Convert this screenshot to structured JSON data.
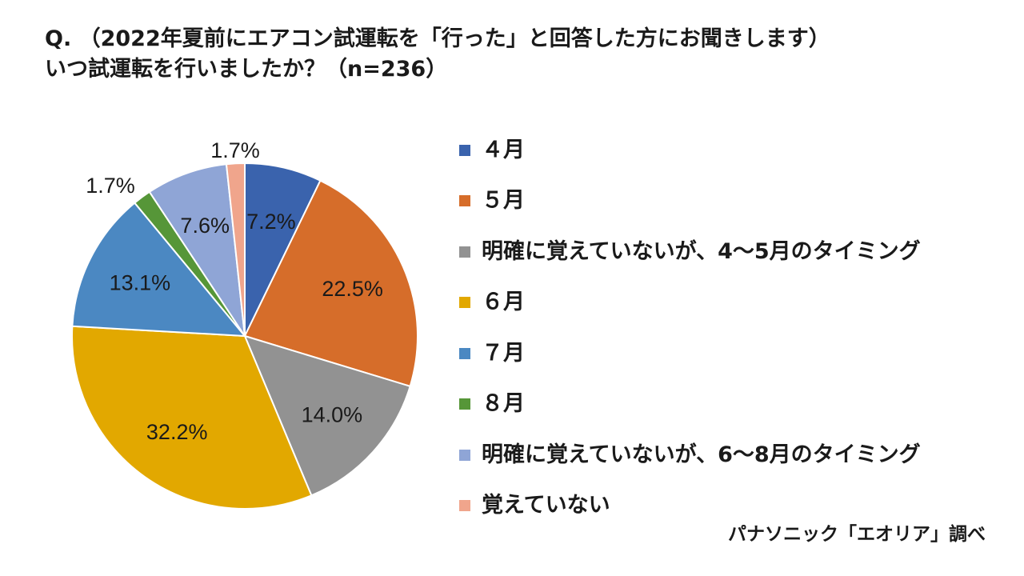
{
  "header": {
    "line1": "Q. （2022年夏前にエアコン試運転を「行った」と回答した方にお聞きします）",
    "line2": "いつ試運転を行いましたか？（n=236）"
  },
  "credit": "パナソニック「エオリア」調べ",
  "chart_data": {
    "type": "pie",
    "title": "",
    "start_angle": "12 o'clock",
    "direction": "clockwise",
    "legend_position": "right",
    "slices": [
      {
        "label": "４月",
        "value": 7.2,
        "display": "7.2%",
        "color": "#3a63ad"
      },
      {
        "label": "５月",
        "value": 22.5,
        "display": "22.5%",
        "color": "#d66d2a"
      },
      {
        "label": "明確に覚えていないが、4～5月のタイミング",
        "value": 14.0,
        "display": "14.0%",
        "color": "#929292"
      },
      {
        "label": "６月",
        "value": 32.2,
        "display": "32.2%",
        "color": "#e2a800"
      },
      {
        "label": "７月",
        "value": 13.1,
        "display": "13.1%",
        "color": "#4b88c2"
      },
      {
        "label": "８月",
        "value": 1.7,
        "display": "1.7%",
        "color": "#569638"
      },
      {
        "label": "明確に覚えていないが、6～8月のタイミング",
        "value": 7.6,
        "display": "7.6%",
        "color": "#8fa5d6"
      },
      {
        "label": "覚えていない",
        "value": 1.7,
        "display": "1.7%",
        "color": "#f0a58c"
      }
    ]
  }
}
